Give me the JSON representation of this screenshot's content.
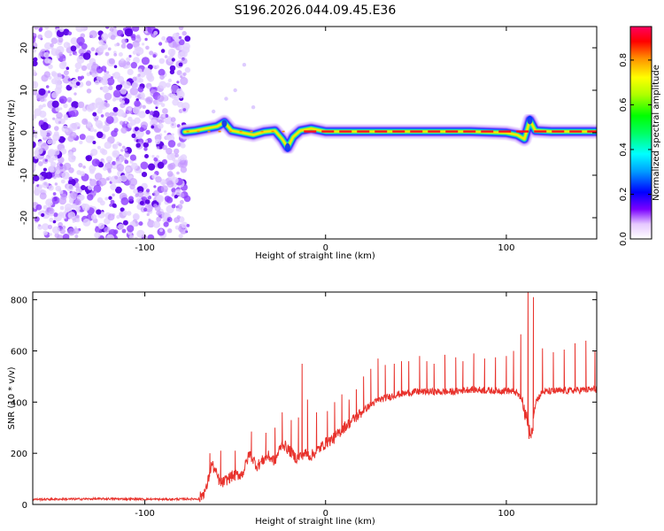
{
  "chart_data": [
    {
      "type": "heatmap",
      "title": "S196.2026.044.09.45.E36",
      "xlabel": "Height of straight line (km)",
      "ylabel": "Frequency (Hz)",
      "xlim": [
        -162,
        150
      ],
      "ylim": [
        -25,
        25
      ],
      "xticks": [
        -100,
        0,
        100
      ],
      "xtick_labels": [
        "-100",
        "0",
        "100"
      ],
      "yticks": [
        -20,
        -10,
        0,
        10,
        20
      ],
      "ytick_labels": [
        "-20",
        "-10",
        "0",
        "10",
        "20"
      ],
      "noise_region_x": [
        -162,
        -78
      ],
      "signal_start_km": -78,
      "ridge": [
        [
          -78,
          0.2
        ],
        [
          -72,
          0.5
        ],
        [
          -66,
          1.0
        ],
        [
          -60,
          1.5
        ],
        [
          -56,
          2.5
        ],
        [
          -52,
          0.5
        ],
        [
          -46,
          0.0
        ],
        [
          -40,
          -0.5
        ],
        [
          -34,
          0.2
        ],
        [
          -28,
          0.5
        ],
        [
          -24,
          -1.5
        ],
        [
          -21,
          -3.5
        ],
        [
          -18,
          -1.0
        ],
        [
          -14,
          0.5
        ],
        [
          -8,
          1.0
        ],
        [
          0,
          0.3
        ],
        [
          20,
          0.3
        ],
        [
          40,
          0.3
        ],
        [
          60,
          0.3
        ],
        [
          80,
          0.3
        ],
        [
          100,
          0.0
        ],
        [
          106,
          -0.5
        ],
        [
          110,
          -1.5
        ],
        [
          113,
          3.0
        ],
        [
          116,
          0.5
        ],
        [
          125,
          0.3
        ],
        [
          140,
          0.3
        ],
        [
          150,
          0.3
        ]
      ],
      "colorbar": {
        "label": "Normalized spectral amplitude",
        "range": [
          0.0,
          0.95
        ],
        "ticks": [
          0.0,
          0.2,
          0.4,
          0.6,
          0.8
        ],
        "tick_labels": [
          "0.0",
          "0.2",
          "0.4",
          "0.6",
          "0.8"
        ]
      }
    },
    {
      "type": "line",
      "xlabel": "Height of straight line (km)",
      "ylabel": "SNR (10 * v/v)",
      "xlim": [
        -162,
        150
      ],
      "ylim": [
        0,
        830
      ],
      "xticks": [
        -100,
        0,
        100
      ],
      "xtick_labels": [
        "-100",
        "0",
        "100"
      ],
      "yticks": [
        0,
        200,
        400,
        600,
        800
      ],
      "ytick_labels": [
        "0",
        "200",
        "400",
        "600",
        "800"
      ],
      "series": [
        {
          "name": "SNR",
          "color": "#e8322c",
          "baseline": [
            [
              -162,
              20
            ],
            [
              -120,
              22
            ],
            [
              -90,
              20
            ],
            [
              -70,
              22
            ],
            [
              -66,
              60
            ],
            [
              -63,
              160
            ],
            [
              -58,
              80
            ],
            [
              -52,
              110
            ],
            [
              -46,
              120
            ],
            [
              -42,
              200
            ],
            [
              -38,
              150
            ],
            [
              -32,
              190
            ],
            [
              -28,
              170
            ],
            [
              -24,
              240
            ],
            [
              -20,
              210
            ],
            [
              -16,
              180
            ],
            [
              -12,
              200
            ],
            [
              -8,
              190
            ],
            [
              -4,
              215
            ],
            [
              0,
              240
            ],
            [
              5,
              260
            ],
            [
              10,
              300
            ],
            [
              15,
              330
            ],
            [
              20,
              360
            ],
            [
              25,
              390
            ],
            [
              30,
              410
            ],
            [
              40,
              430
            ],
            [
              50,
              440
            ],
            [
              60,
              440
            ],
            [
              70,
              440
            ],
            [
              80,
              450
            ],
            [
              90,
              445
            ],
            [
              100,
              445
            ],
            [
              105,
              440
            ],
            [
              110,
              400
            ],
            [
              112,
              330
            ],
            [
              114,
              300
            ],
            [
              116,
              400
            ],
            [
              120,
              440
            ],
            [
              150,
              450
            ]
          ],
          "peaks": [
            [
              -64,
              200
            ],
            [
              -58,
              210
            ],
            [
              -50,
              210
            ],
            [
              -41,
              285
            ],
            [
              -33,
              280
            ],
            [
              -28,
              300
            ],
            [
              -24,
              360
            ],
            [
              -19,
              330
            ],
            [
              -15,
              340
            ],
            [
              -13,
              550
            ],
            [
              -10,
              410
            ],
            [
              -5,
              360
            ],
            [
              1,
              365
            ],
            [
              5,
              400
            ],
            [
              9,
              430
            ],
            [
              13,
              410
            ],
            [
              17,
              450
            ],
            [
              21,
              500
            ],
            [
              25,
              530
            ],
            [
              29,
              570
            ],
            [
              33,
              545
            ],
            [
              38,
              550
            ],
            [
              42,
              560
            ],
            [
              46,
              560
            ],
            [
              52,
              580
            ],
            [
              56,
              560
            ],
            [
              60,
              550
            ],
            [
              66,
              585
            ],
            [
              72,
              575
            ],
            [
              76,
              560
            ],
            [
              82,
              590
            ],
            [
              88,
              570
            ],
            [
              94,
              575
            ],
            [
              100,
              580
            ],
            [
              104,
              600
            ],
            [
              108,
              665
            ],
            [
              112,
              835
            ],
            [
              115,
              810
            ],
            [
              120,
              610
            ],
            [
              126,
              595
            ],
            [
              132,
              605
            ],
            [
              138,
              630
            ],
            [
              144,
              640
            ],
            [
              149,
              600
            ]
          ]
        }
      ]
    }
  ]
}
